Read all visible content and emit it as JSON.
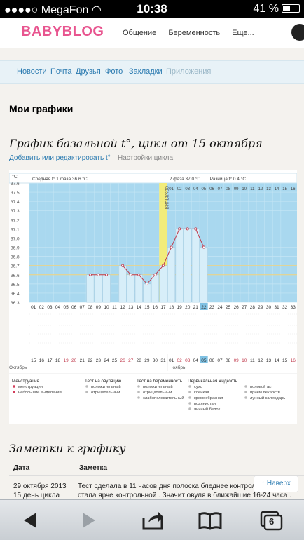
{
  "status_bar": {
    "carrier": "MegaFon",
    "time": "10:38",
    "battery": "41 %"
  },
  "header": {
    "logo": "BABYBLOG",
    "nav": [
      "Общение",
      "Беременность",
      "Еще..."
    ]
  },
  "subnav": {
    "items": [
      "Новости",
      "Почта",
      "Друзья",
      "Фото",
      "Закладки",
      "Приложения"
    ]
  },
  "page_title": "Мои графики",
  "chart_title": "График базальной t°, цикл от 15 октября",
  "links": {
    "edit": "Добавить или редактировать t°",
    "settings": "Настройки цикла"
  },
  "chart_data": {
    "type": "line",
    "title": "График базальной t°, цикл от 15 октября",
    "ylabel": "°C",
    "ylim": [
      36.3,
      37.6
    ],
    "y_ticks": [
      37.6,
      37.5,
      37.4,
      37.3,
      37.2,
      37.1,
      37.0,
      36.9,
      36.8,
      36.7,
      36.6,
      36.5,
      36.4,
      36.3
    ],
    "phase1_label": "Средняя t° 1 фаза 36.6 °C",
    "phase2_label": "2 фаза 37.0 °C",
    "diff_label": "Разница t° 0.4 °C",
    "ovulation_label": "ОВУЛЯЦИЯ",
    "ovulation_day": 17,
    "cycle_days": [
      1,
      2,
      3,
      4,
      5,
      6,
      7,
      8,
      9,
      10,
      11,
      12,
      13,
      14,
      15,
      16,
      17,
      18,
      19,
      20,
      21,
      22,
      23,
      24,
      25,
      26,
      27,
      28,
      29,
      30,
      31,
      32,
      33
    ],
    "phase2_days": [
      1,
      2,
      3,
      4,
      5,
      6,
      7,
      8,
      9,
      10,
      11,
      12,
      13,
      14,
      15,
      16
    ],
    "values": [
      null,
      null,
      null,
      null,
      null,
      null,
      null,
      36.6,
      36.6,
      36.6,
      null,
      36.7,
      36.6,
      36.6,
      36.5,
      36.6,
      36.7,
      36.9,
      37.1,
      37.1,
      37.1,
      36.9,
      null,
      null,
      null,
      null,
      null,
      null,
      null,
      null,
      null,
      null,
      null
    ],
    "current_day": 22,
    "dates": [
      "15",
      "16",
      "17",
      "18",
      "19",
      "20",
      "21",
      "22",
      "23",
      "24",
      "25",
      "26",
      "27",
      "28",
      "29",
      "30",
      "31",
      "01",
      "02",
      "03",
      "04",
      "05",
      "06",
      "07",
      "08",
      "09",
      "10",
      "11",
      "12",
      "13",
      "14",
      "15",
      "16"
    ],
    "month_labels": [
      "Октябрь",
      "Ноябрь"
    ],
    "legend": {
      "menstruation": {
        "title": "Менструация",
        "items": [
          "менструация",
          "небольшие выделения"
        ]
      },
      "ovulation_test": {
        "title": "Тест на овуляцию",
        "items": [
          "положительный",
          "отрицательный"
        ]
      },
      "pregnancy_test": {
        "title": "Тест на беременность",
        "items": [
          "положительный",
          "отрицательный",
          "слабоположительный"
        ]
      },
      "cervical": {
        "title": "Цервикальная жидкость",
        "items": [
          "сухо",
          "клейкая",
          "кремообразная",
          "водянистая",
          "яичный белок"
        ]
      },
      "other": {
        "items": [
          "половой акт",
          "прием лекарств",
          "лунный календарь"
        ]
      }
    }
  },
  "notes": {
    "title": "Заметки к графику",
    "col_date": "Дата",
    "col_note": "Заметка",
    "rows": [
      {
        "date": "29 октября 2013",
        "day": "15 день цикла",
        "text1": "Тест сделала в 11 часов дня полоска бледнее контрольной",
        "text2": "стала ярче контрольной . Значит овуля в ближайшие 16-24 часа ."
      }
    ]
  },
  "up_button": "↑ Наверх",
  "toolbar": {
    "tabs_count": "6"
  }
}
